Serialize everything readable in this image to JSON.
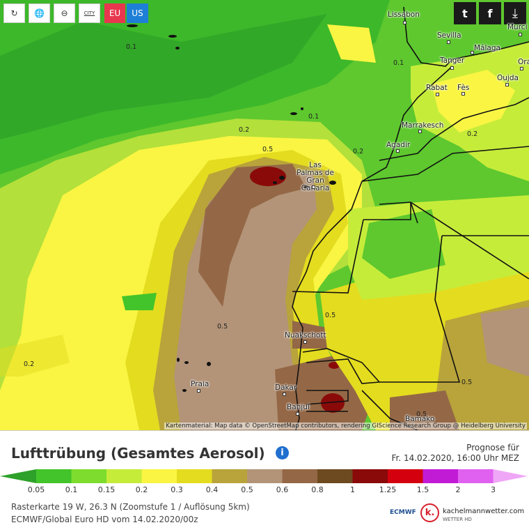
{
  "toolbar": {
    "reload_icon": "reload-icon",
    "globe_icon": "globe-icon",
    "zoom_icon": "zoom-out-icon",
    "city_label": "CITY",
    "eu_label": "EU",
    "us_label": "US"
  },
  "social": {
    "twitter_glyph": "t",
    "facebook_glyph": "f",
    "download_glyph": "⤓"
  },
  "cities": [
    {
      "name": "Lissabon"
    },
    {
      "name": "Sevilla"
    },
    {
      "name": "Málaga"
    },
    {
      "name": "Murci"
    },
    {
      "name": "Tanger"
    },
    {
      "name": "Ora"
    },
    {
      "name": "Oujda"
    },
    {
      "name": "Rabat"
    },
    {
      "name": "Fès"
    },
    {
      "name": "Marrakesch"
    },
    {
      "name": "Agadir"
    },
    {
      "name": "Las Palmas de Gran Canaria"
    },
    {
      "name": "Nuakschott"
    },
    {
      "name": "Praia"
    },
    {
      "name": "Dakar"
    },
    {
      "name": "Banjul"
    },
    {
      "name": "Bamako"
    }
  ],
  "contour_labels": [
    "0.1",
    "0.1",
    "0.1",
    "0.2",
    "0.2",
    "0.2",
    "0.5",
    "0.2",
    "0.5",
    "0.5",
    "0.5",
    "0.5",
    "0.2"
  ],
  "attribution": "Kartenmaterial: Map data © OpenStreetMap contributors, rendering GIScience Research Group @ Heidelberg University",
  "footer": {
    "title": "Lufttrübung (Gesamtes Aerosol)",
    "info_glyph": "i",
    "forecast_label": "Prognose für",
    "forecast_time": "Fr. 14.02.2020, 16:00 Uhr MEZ",
    "line1": "Rasterkarte 19 W, 26.3 N (Zoomstufe 1 / Auflösung 5km)",
    "line2": "ECMWF/Global Euro HD vom 14.02.2020/00z",
    "ecmwf_label": "ECMWF",
    "brand_logo": "k.",
    "brand_name": "kachelmannwetter.com",
    "brand_sub": "WETTER HD"
  },
  "legend": {
    "ticks": [
      "0.05",
      "0.1",
      "0.15",
      "0.2",
      "0.3",
      "0.4",
      "0.5",
      "0.6",
      "0.8",
      "1",
      "1.25",
      "1.5",
      "2",
      "3"
    ],
    "colors": [
      "#2ea12a",
      "#43c42a",
      "#7ddc2d",
      "#c6ec3a",
      "#f9f542",
      "#e4dc1f",
      "#b8a43a",
      "#b39478",
      "#946846",
      "#6d4a1f",
      "#8a0a0a",
      "#d4000e",
      "#c21bd6",
      "#e061f0",
      "#f0a6f7"
    ]
  }
}
